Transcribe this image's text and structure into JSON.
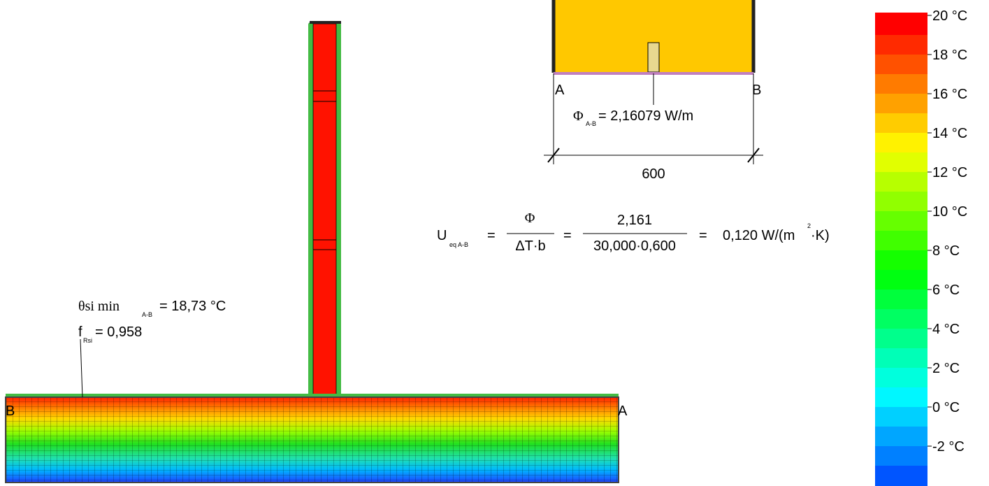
{
  "inset": {
    "label_a": "A",
    "label_b": "B",
    "flux_symbol": "Φ",
    "flux_subscript": "A-B",
    "flux_value": "= 2,16079 W/m",
    "dimension": "600"
  },
  "formula": {
    "u": "U",
    "u_subscript": "eq A-B",
    "eq1": "=",
    "numerator1": "Φ",
    "denominator1": "ΔT·b",
    "eq2": "=",
    "numerator2": "2,161",
    "denominator2": "30,000·0,600",
    "eq3": "=",
    "result": "0,120 W/(m",
    "result_exponent": "2",
    "result_tail": "·K)"
  },
  "annotation": {
    "theta": "θsi min",
    "theta_subscript": "A-B",
    "theta_value": "= 18,73 °C",
    "f": "f",
    "f_subscript": "Rsi",
    "f_value": "= 0,958"
  },
  "section": {
    "label_b": "B",
    "label_a": "A"
  },
  "colorbar": {
    "labels": [
      "20 °C",
      "18 °C",
      "16 °C",
      "14 °C",
      "12 °C",
      "10 °C",
      "8 °C",
      "6 °C",
      "4 °C",
      "2 °C",
      "0 °C",
      "-2 °C"
    ]
  }
}
